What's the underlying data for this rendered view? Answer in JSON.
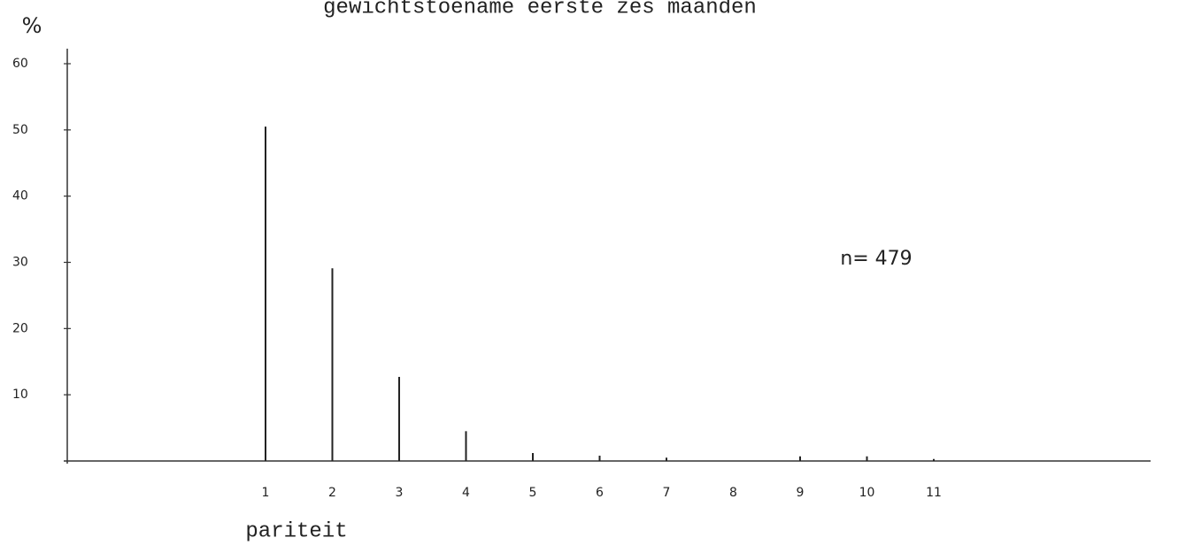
{
  "chart_data": {
    "type": "bar",
    "title": "gewichtstoename eerste zes maanden",
    "ylabel": "%",
    "xlabel": "pariteit",
    "annotation": "n= 479",
    "categories": [
      "1",
      "2",
      "3",
      "4",
      "5",
      "6",
      "7",
      "8",
      "9",
      "10",
      "11"
    ],
    "values": [
      50.5,
      29.1,
      12.7,
      4.5,
      1.2,
      0.8,
      0.5,
      0,
      0.7,
      0.7,
      0.3
    ],
    "color": "#222222",
    "ylim": [
      0,
      60
    ],
    "yticks": [
      10,
      20,
      30,
      40,
      50,
      60
    ],
    "grid": false
  }
}
